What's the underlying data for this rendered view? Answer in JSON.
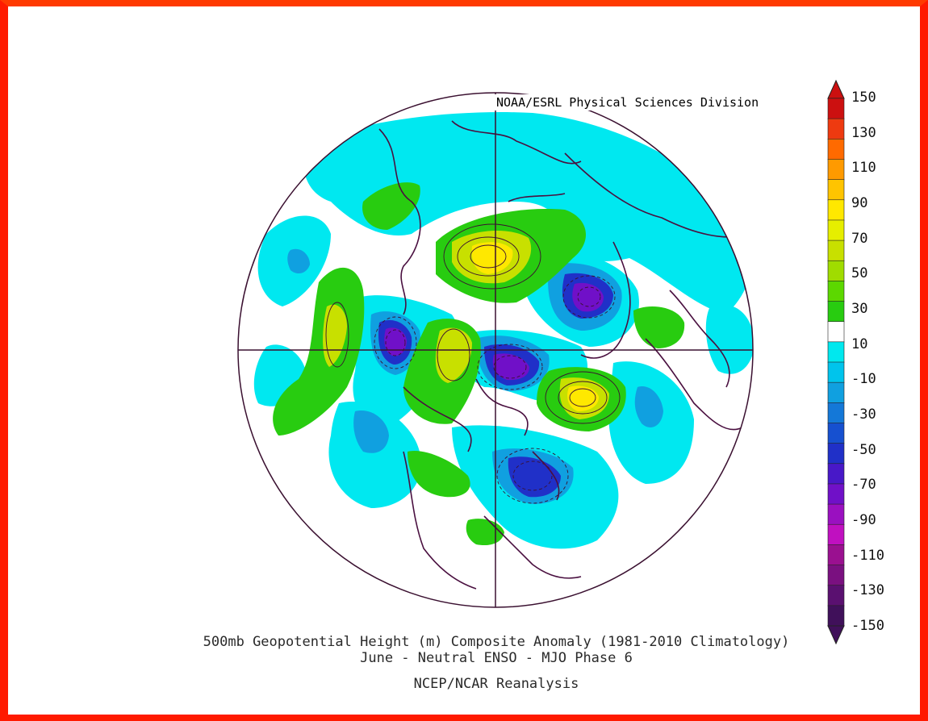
{
  "credit": "NOAA/ESRL Physical Sciences Division",
  "caption": {
    "line1": "500mb Geopotential Height (m) Composite Anomaly (1981-2010 Climatology)",
    "line2": "June - Neutral ENSO - MJO Phase 6",
    "source": "NCEP/NCAR Reanalysis"
  },
  "colorbar": {
    "labels": [
      "150",
      "130",
      "110",
      "90",
      "70",
      "50",
      "30",
      "10",
      "-10",
      "-30",
      "-50",
      "-70",
      "-90",
      "-110",
      "-130",
      "-150"
    ],
    "colors": [
      "#cc1010",
      "#ee3a10",
      "#ff6a00",
      "#ff9a00",
      "#ffc400",
      "#ffe800",
      "#e6ee00",
      "#c8e000",
      "#a0dc00",
      "#5cd800",
      "#28cc10",
      "#ffffff",
      "#00e8ee",
      "#00c4ec",
      "#10a0e0",
      "#1478d8",
      "#1650d0",
      "#2030c8",
      "#4818c8",
      "#7010c8",
      "#9a10c0",
      "#c010c0",
      "#9a1090",
      "#7a1080",
      "#5a1070",
      "#40105a"
    ]
  },
  "colors": {
    "frame": "#ff1a00",
    "coastline": "#4a1040",
    "contour": "#3a1030"
  }
}
